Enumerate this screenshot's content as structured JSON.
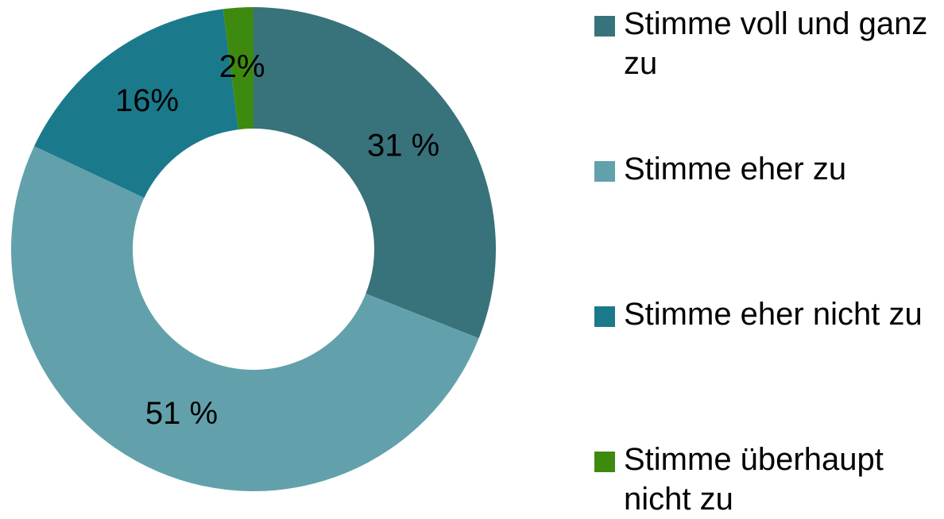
{
  "chart_data": {
    "type": "pie",
    "categories": [
      "Stimme voll und ganz zu",
      "Stimme eher zu",
      "Stimme eher nicht zu",
      "Stimme überhaupt nicht zu"
    ],
    "values": [
      31,
      51,
      16,
      2
    ],
    "value_labels": [
      "31 %",
      "51 %",
      "16%",
      "2%"
    ],
    "colors": [
      "#38727b",
      "#62a1ab",
      "#1a7a8c",
      "#3e8a0f"
    ],
    "legend": "right"
  }
}
